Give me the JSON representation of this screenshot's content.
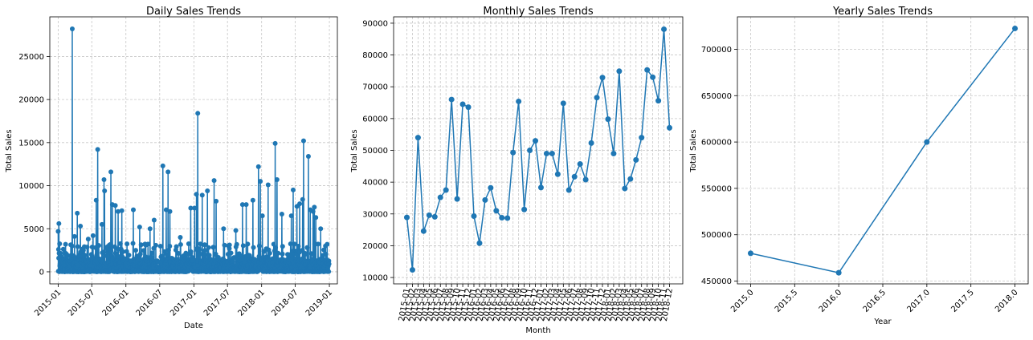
{
  "chart_data": [
    {
      "type": "line",
      "title": "Daily Sales Trends",
      "xlabel": "Date",
      "ylabel": "Total Sales",
      "xlim": [
        "2014-11-17",
        "2019-02-13"
      ],
      "ylim": [
        -1400,
        29600
      ],
      "xticks": [
        "2015-01",
        "2015-07",
        "2016-01",
        "2016-07",
        "2017-01",
        "2017-07",
        "2018-01",
        "2018-07",
        "2019-01"
      ],
      "yticks": [
        0,
        5000,
        10000,
        15000,
        20000,
        25000
      ],
      "ytick_labels": [
        "0",
        "5000",
        "10000",
        "15000",
        "20000",
        "25000"
      ],
      "grid": true,
      "color": "#1f77b4",
      "seed": 7,
      "base_level": 1500,
      "peaks": [
        {
          "date": "2015-01-01",
          "value": 4700
        },
        {
          "date": "2015-01-05",
          "value": 5600
        },
        {
          "date": "2015-02-10",
          "value": 3200
        },
        {
          "date": "2015-03-18",
          "value": 28200
        },
        {
          "date": "2015-03-30",
          "value": 4100
        },
        {
          "date": "2015-04-14",
          "value": 6800
        },
        {
          "date": "2015-05-01",
          "value": 5300
        },
        {
          "date": "2015-06-12",
          "value": 3800
        },
        {
          "date": "2015-07-08",
          "value": 4200
        },
        {
          "date": "2015-07-25",
          "value": 8300
        },
        {
          "date": "2015-08-02",
          "value": 14200
        },
        {
          "date": "2015-08-25",
          "value": 5500
        },
        {
          "date": "2015-09-05",
          "value": 10700
        },
        {
          "date": "2015-09-08",
          "value": 9400
        },
        {
          "date": "2015-10-12",
          "value": 11600
        },
        {
          "date": "2015-10-20",
          "value": 7800
        },
        {
          "date": "2015-11-05",
          "value": 7700
        },
        {
          "date": "2015-11-20",
          "value": 7000
        },
        {
          "date": "2015-12-10",
          "value": 7100
        },
        {
          "date": "2016-02-10",
          "value": 7200
        },
        {
          "date": "2016-03-15",
          "value": 5200
        },
        {
          "date": "2016-05-10",
          "value": 5000
        },
        {
          "date": "2016-06-01",
          "value": 6000
        },
        {
          "date": "2016-07-18",
          "value": 12300
        },
        {
          "date": "2016-08-05",
          "value": 7200
        },
        {
          "date": "2016-08-15",
          "value": 11600
        },
        {
          "date": "2016-08-25",
          "value": 7000
        },
        {
          "date": "2016-10-20",
          "value": 4000
        },
        {
          "date": "2016-12-15",
          "value": 7400
        },
        {
          "date": "2017-01-05",
          "value": 7400
        },
        {
          "date": "2017-01-15",
          "value": 9000
        },
        {
          "date": "2017-01-22",
          "value": 18400
        },
        {
          "date": "2017-02-15",
          "value": 8900
        },
        {
          "date": "2017-03-15",
          "value": 9400
        },
        {
          "date": "2017-04-20",
          "value": 10600
        },
        {
          "date": "2017-05-01",
          "value": 8200
        },
        {
          "date": "2017-06-10",
          "value": 5000
        },
        {
          "date": "2017-08-15",
          "value": 4800
        },
        {
          "date": "2017-09-20",
          "value": 7800
        },
        {
          "date": "2017-10-10",
          "value": 7800
        },
        {
          "date": "2017-11-15",
          "value": 8300
        },
        {
          "date": "2017-12-15",
          "value": 12200
        },
        {
          "date": "2017-12-25",
          "value": 10500
        },
        {
          "date": "2018-01-05",
          "value": 6500
        },
        {
          "date": "2018-02-05",
          "value": 10100
        },
        {
          "date": "2018-03-15",
          "value": 14900
        },
        {
          "date": "2018-03-25",
          "value": 10700
        },
        {
          "date": "2018-04-20",
          "value": 6700
        },
        {
          "date": "2018-06-10",
          "value": 6500
        },
        {
          "date": "2018-06-20",
          "value": 9500
        },
        {
          "date": "2018-07-10",
          "value": 7600
        },
        {
          "date": "2018-07-25",
          "value": 7900
        },
        {
          "date": "2018-08-10",
          "value": 8400
        },
        {
          "date": "2018-08-15",
          "value": 15200
        },
        {
          "date": "2018-09-10",
          "value": 13400
        },
        {
          "date": "2018-09-20",
          "value": 7200
        },
        {
          "date": "2018-10-05",
          "value": 7000
        },
        {
          "date": "2018-10-12",
          "value": 7500
        },
        {
          "date": "2018-10-20",
          "value": 6300
        },
        {
          "date": "2018-11-15",
          "value": 5000
        },
        {
          "date": "2018-12-20",
          "value": 3200
        }
      ]
    },
    {
      "type": "line",
      "title": "Monthly Sales Trends",
      "xlabel": "Month",
      "ylabel": "Total Sales",
      "ylim": [
        8000,
        92000
      ],
      "yticks": [
        10000,
        20000,
        30000,
        40000,
        50000,
        60000,
        70000,
        80000,
        90000
      ],
      "ytick_labels": [
        "10000",
        "20000",
        "30000",
        "40000",
        "50000",
        "60000",
        "70000",
        "80000",
        "90000"
      ],
      "grid": true,
      "color": "#1f77b4",
      "categories": [
        "2015-01",
        "2015-02",
        "2015-03",
        "2015-04",
        "2015-05",
        "2015-06",
        "2015-07",
        "2015-08",
        "2015-09",
        "2015-10",
        "2015-11",
        "2015-12",
        "2016-01",
        "2016-02",
        "2016-03",
        "2016-04",
        "2016-05",
        "2016-06",
        "2016-07",
        "2016-08",
        "2016-09",
        "2016-10",
        "2016-11",
        "2016-12",
        "2017-01",
        "2017-02",
        "2017-03",
        "2017-04",
        "2017-05",
        "2017-06",
        "2017-07",
        "2017-08",
        "2017-09",
        "2017-10",
        "2017-11",
        "2017-12",
        "2018-01",
        "2018-02",
        "2018-03",
        "2018-04",
        "2018-05",
        "2018-06",
        "2018-07",
        "2018-08",
        "2018-09",
        "2018-10",
        "2018-11",
        "2018-12"
      ],
      "values": [
        28900,
        12400,
        54000,
        24600,
        29600,
        29100,
        35200,
        37500,
        66000,
        34700,
        64500,
        63600,
        29300,
        20800,
        34400,
        38200,
        31000,
        28800,
        28700,
        49300,
        65400,
        31400,
        50000,
        53000,
        38300,
        49000,
        49000,
        42500,
        64800,
        37500,
        41700,
        45700,
        40800,
        52300,
        66600,
        72900,
        59800,
        49000,
        74900,
        38000,
        41000,
        47000,
        54000,
        75300,
        73000,
        65600,
        88100,
        57100
      ]
    },
    {
      "type": "line",
      "title": "Yearly Sales Trends",
      "xlabel": "Year",
      "ylabel": "Total Sales",
      "xlim": [
        2014.85,
        2018.15
      ],
      "ylim": [
        447000,
        735000
      ],
      "xticks": [
        2015.0,
        2015.5,
        2016.0,
        2016.5,
        2017.0,
        2017.5,
        2018.0
      ],
      "xtick_labels": [
        "2015.0",
        "2015.5",
        "2016.0",
        "2016.5",
        "2017.0",
        "2017.5",
        "2018.0"
      ],
      "yticks": [
        450000,
        500000,
        550000,
        600000,
        650000,
        700000
      ],
      "ytick_labels": [
        "450000",
        "500000",
        "550000",
        "600000",
        "650000",
        "700000"
      ],
      "grid": true,
      "color": "#1f77b4",
      "x": [
        2015,
        2016,
        2017,
        2018
      ],
      "values": [
        480000,
        459000,
        600000,
        722500
      ]
    }
  ]
}
